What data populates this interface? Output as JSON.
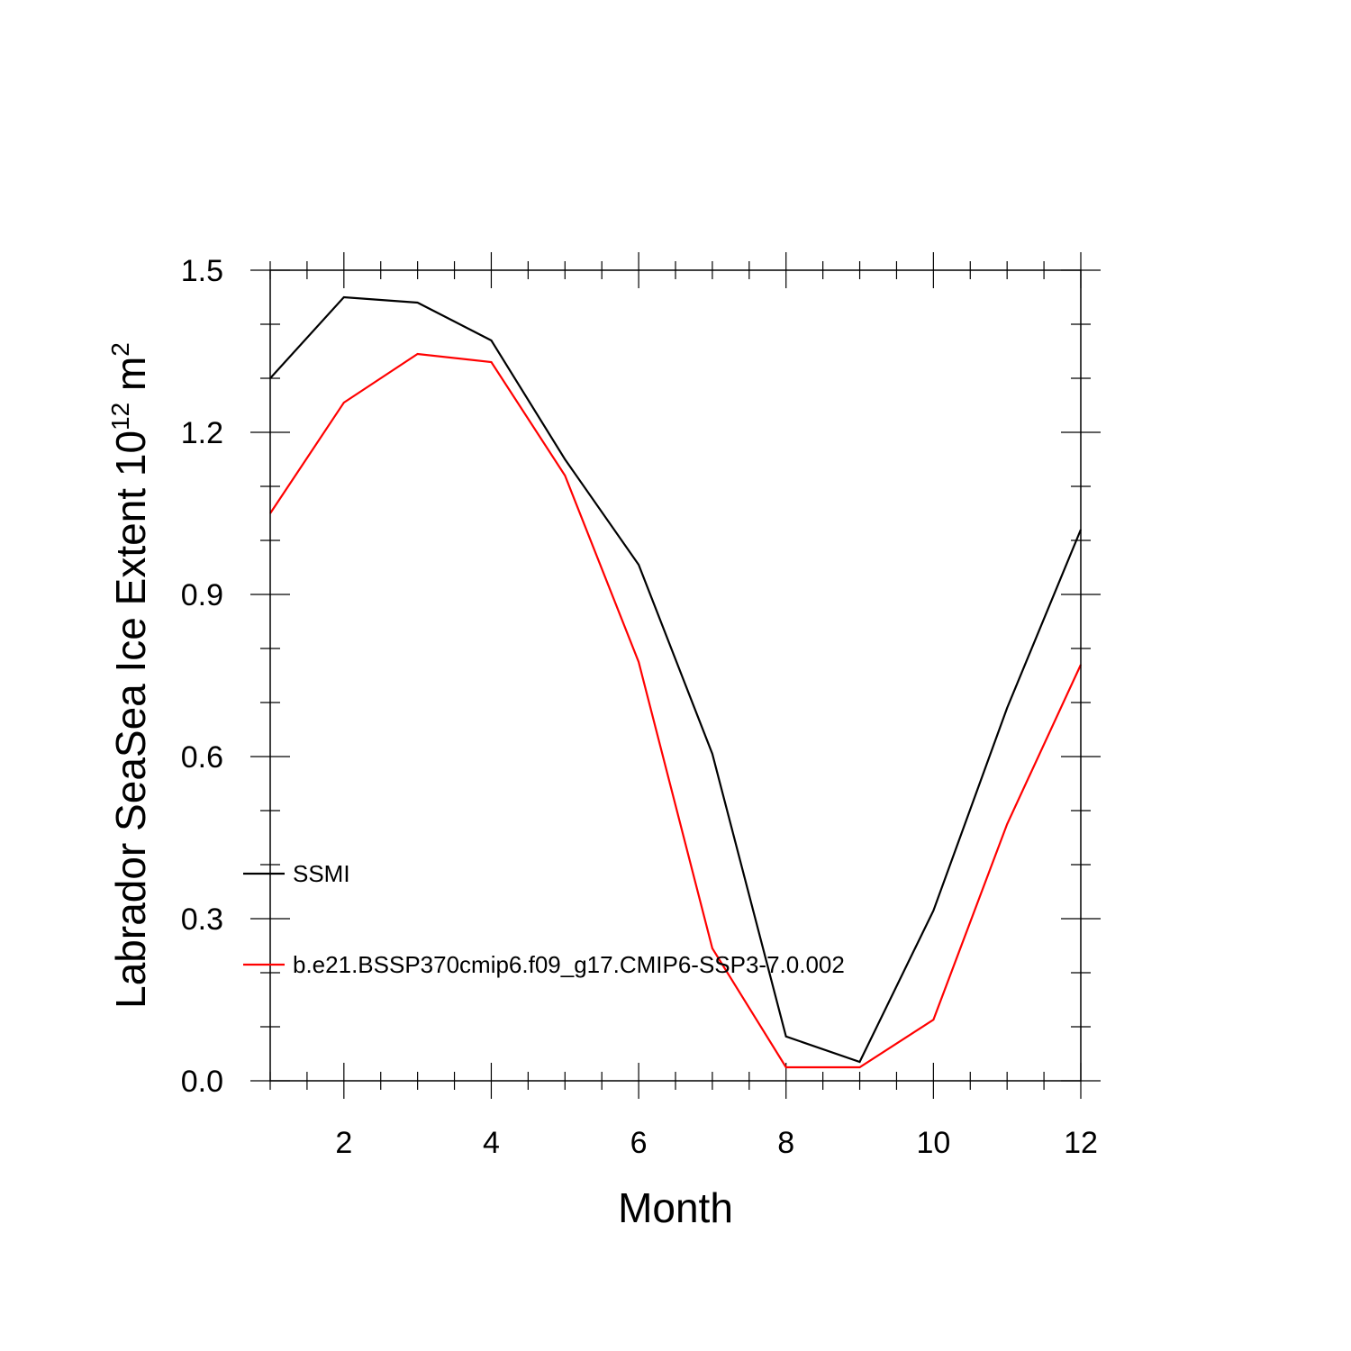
{
  "chart_data": {
    "type": "line",
    "title": "",
    "xlabel": "Month",
    "ylabel": {
      "base": "Labrador SeaSea Ice Extent 10",
      "superscript1": "12",
      "unit": " m",
      "superscript2": "2"
    },
    "xlim": [
      1,
      12
    ],
    "ylim": [
      0,
      1.5
    ],
    "xticks": [
      2,
      4,
      6,
      8,
      10,
      12
    ],
    "xtick_labels": [
      "2",
      "4",
      "6",
      "8",
      "10",
      "12"
    ],
    "yticks": [
      0,
      0.3,
      0.6,
      0.9,
      1.2,
      1.5
    ],
    "ytick_labels": [
      "0.0",
      "0.3",
      "0.6",
      "0.9",
      "1.2",
      "1.5"
    ],
    "grid": false,
    "legend_placement": "lower-left inside",
    "x": [
      1,
      2,
      3,
      4,
      5,
      6,
      7,
      8,
      9,
      10,
      11,
      12
    ],
    "series": [
      {
        "name": "SSMI",
        "color": "#000000",
        "values": [
          1.3,
          1.45,
          1.44,
          1.37,
          1.15,
          0.955,
          0.605,
          0.082,
          0.035,
          0.315,
          0.69,
          1.02
        ]
      },
      {
        "name": "b.e21.BSSP370cmip6.f09_g17.CMIP6-SSP3-7.0.002",
        "color": "#ff0000",
        "values": [
          1.05,
          1.255,
          1.345,
          1.33,
          1.12,
          0.775,
          0.245,
          0.025,
          0.025,
          0.113,
          0.475,
          0.77
        ]
      }
    ]
  }
}
